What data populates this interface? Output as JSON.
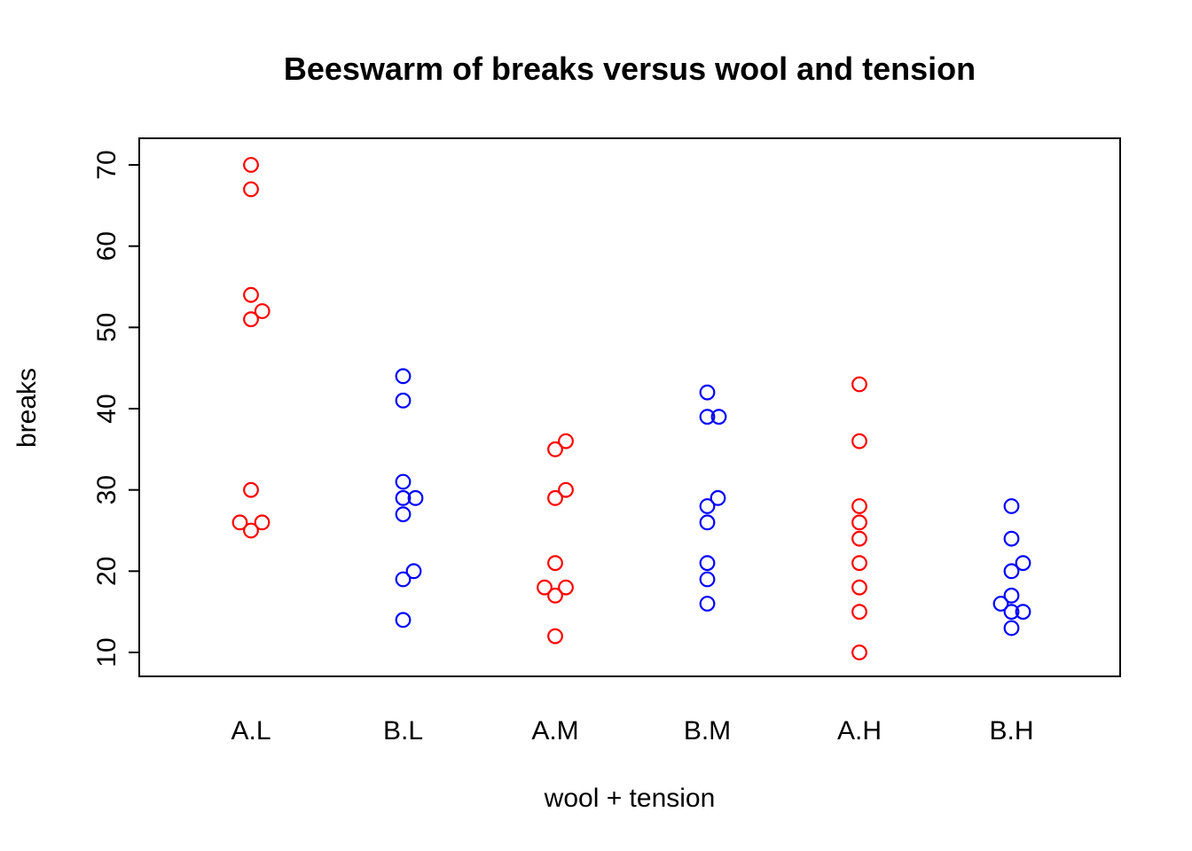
{
  "chart_data": {
    "type": "scatter",
    "subtype": "beeswarm",
    "title": "Beeswarm of breaks versus wool and tension",
    "xlabel": "wool + tension",
    "ylabel": "breaks",
    "categories": [
      "A.L",
      "B.L",
      "A.M",
      "B.M",
      "A.H",
      "B.H"
    ],
    "yticks": [
      10,
      20,
      30,
      40,
      50,
      60,
      70
    ],
    "ylim": [
      10,
      70
    ],
    "grid": false,
    "legend": false,
    "point_style": "open-circle",
    "colors": {
      "wool_A_points": "#ff0000",
      "wool_B_points": "#0000ff",
      "axis": "#000000"
    },
    "groups": [
      {
        "label": "A.L",
        "color": "#ff0000",
        "points": [
          {
            "v": 70,
            "dx": 0
          },
          {
            "v": 67,
            "dx": 0
          },
          {
            "v": 54,
            "dx": 0
          },
          {
            "v": 52,
            "dx": 12.7
          },
          {
            "v": 51,
            "dx": 0
          },
          {
            "v": 30,
            "dx": 0
          },
          {
            "v": 26,
            "dx": -12.5
          },
          {
            "v": 26,
            "dx": 12.5
          },
          {
            "v": 25,
            "dx": 0
          }
        ]
      },
      {
        "label": "B.L",
        "color": "#0000ff",
        "points": [
          {
            "v": 44,
            "dx": 0
          },
          {
            "v": 41,
            "dx": 0
          },
          {
            "v": 31,
            "dx": 0
          },
          {
            "v": 29,
            "dx": 0
          },
          {
            "v": 29,
            "dx": 14
          },
          {
            "v": 27,
            "dx": 0
          },
          {
            "v": 20,
            "dx": 12
          },
          {
            "v": 19,
            "dx": 0
          },
          {
            "v": 14,
            "dx": 0
          }
        ]
      },
      {
        "label": "A.M",
        "color": "#ff0000",
        "points": [
          {
            "v": 36,
            "dx": 12
          },
          {
            "v": 35,
            "dx": 0
          },
          {
            "v": 30,
            "dx": 12
          },
          {
            "v": 29,
            "dx": 0
          },
          {
            "v": 21,
            "dx": 0
          },
          {
            "v": 18,
            "dx": -12
          },
          {
            "v": 18,
            "dx": 12
          },
          {
            "v": 17,
            "dx": 0
          },
          {
            "v": 12,
            "dx": 0
          }
        ]
      },
      {
        "label": "B.M",
        "color": "#0000ff",
        "points": [
          {
            "v": 42,
            "dx": 0
          },
          {
            "v": 39,
            "dx": 0
          },
          {
            "v": 39,
            "dx": 13
          },
          {
            "v": 29,
            "dx": 12
          },
          {
            "v": 28,
            "dx": 0
          },
          {
            "v": 26,
            "dx": 0
          },
          {
            "v": 21,
            "dx": 0
          },
          {
            "v": 19,
            "dx": 0
          },
          {
            "v": 16,
            "dx": 0
          }
        ]
      },
      {
        "label": "A.H",
        "color": "#ff0000",
        "points": [
          {
            "v": 43,
            "dx": 0
          },
          {
            "v": 36,
            "dx": 0
          },
          {
            "v": 28,
            "dx": 0
          },
          {
            "v": 26,
            "dx": 0
          },
          {
            "v": 24,
            "dx": 0
          },
          {
            "v": 21,
            "dx": 0
          },
          {
            "v": 18,
            "dx": 0
          },
          {
            "v": 15,
            "dx": 0
          },
          {
            "v": 10,
            "dx": 0
          }
        ]
      },
      {
        "label": "B.H",
        "color": "#0000ff",
        "points": [
          {
            "v": 28,
            "dx": 0
          },
          {
            "v": 24,
            "dx": 0
          },
          {
            "v": 21,
            "dx": 13
          },
          {
            "v": 20,
            "dx": 0
          },
          {
            "v": 17,
            "dx": 0
          },
          {
            "v": 16,
            "dx": -12
          },
          {
            "v": 15,
            "dx": 0
          },
          {
            "v": 15,
            "dx": 13
          },
          {
            "v": 13,
            "dx": 0
          }
        ]
      }
    ]
  }
}
